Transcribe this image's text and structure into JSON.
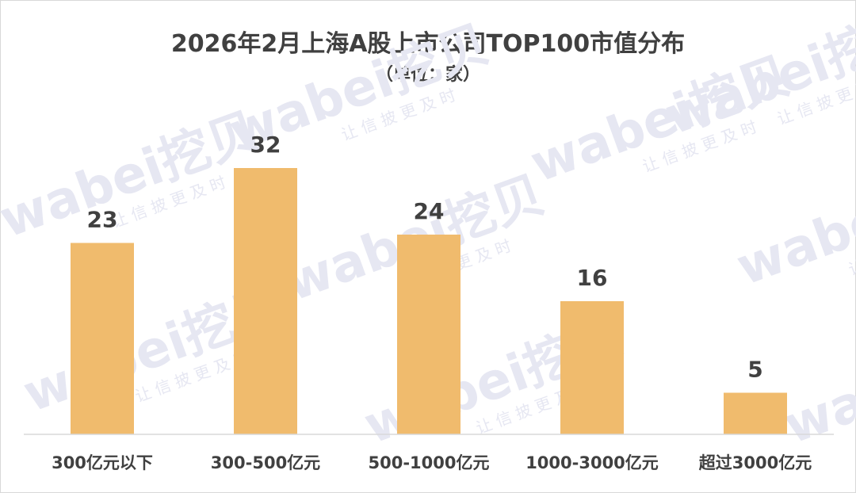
{
  "chart_data": {
    "type": "bar",
    "title": "2026年2月上海A股上市公司TOP100市值分布",
    "subtitle": "（单位：家）",
    "categories": [
      "300亿元以下",
      "300-500亿元",
      "500-1000亿元",
      "1000-3000亿元",
      "超过3000亿元"
    ],
    "values": [
      23,
      32,
      24,
      16,
      5
    ],
    "ylim": [
      0,
      36
    ],
    "grid": false,
    "bar_color": "#f0bb6d"
  },
  "watermark": {
    "brand": "wabei挖贝",
    "slogan": "让 信 披 更 及 时"
  }
}
